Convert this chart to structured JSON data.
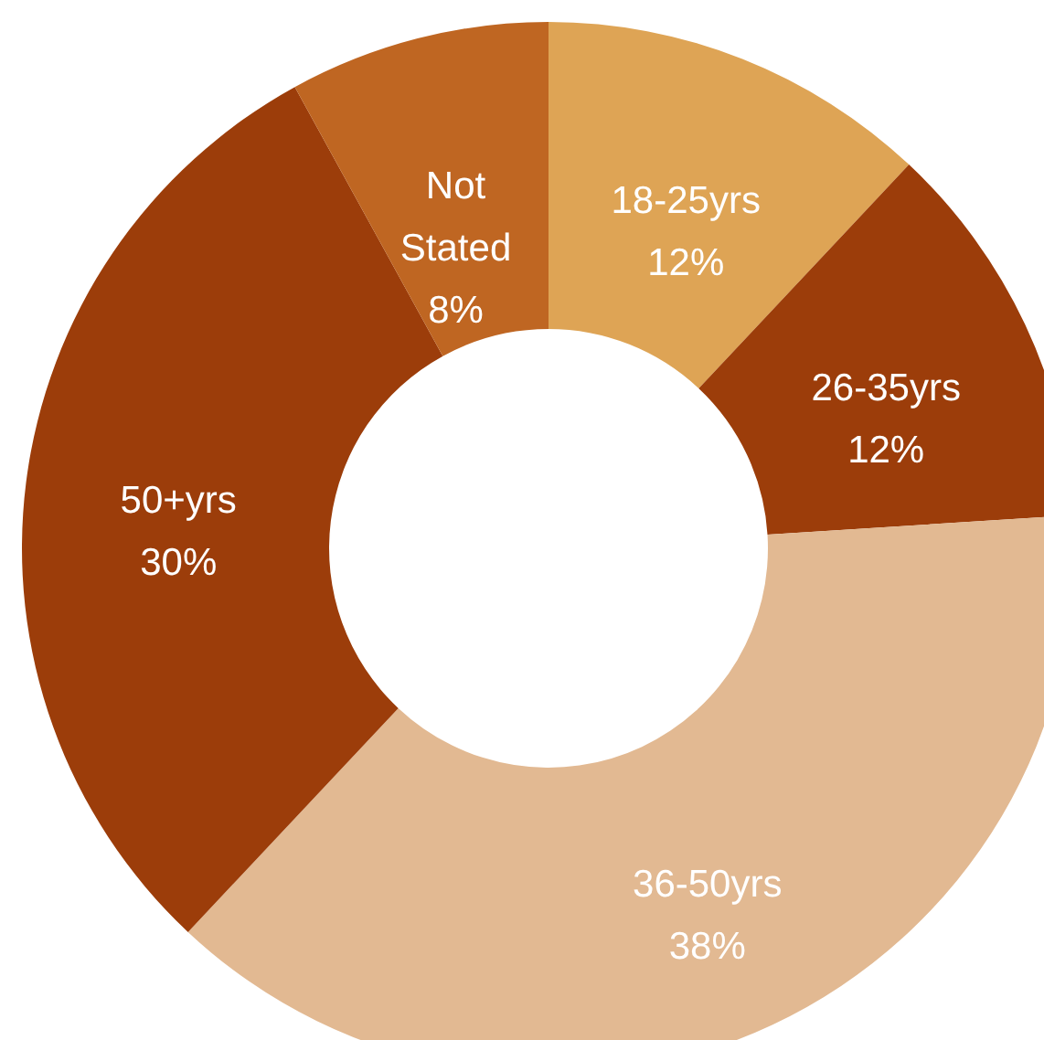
{
  "chart_data": {
    "type": "donut",
    "categories": [
      "18-25yrs",
      "26-35yrs",
      "36-50yrs",
      "50+yrs",
      "Not Stated"
    ],
    "values": [
      12,
      12,
      38,
      30,
      8
    ],
    "value_labels": [
      "12%",
      "12%",
      "38%",
      "30%",
      "8%"
    ],
    "colors": [
      "#dea455",
      "#9c3d0a",
      "#e2b992",
      "#9c3d0a",
      "#bf6622"
    ]
  }
}
